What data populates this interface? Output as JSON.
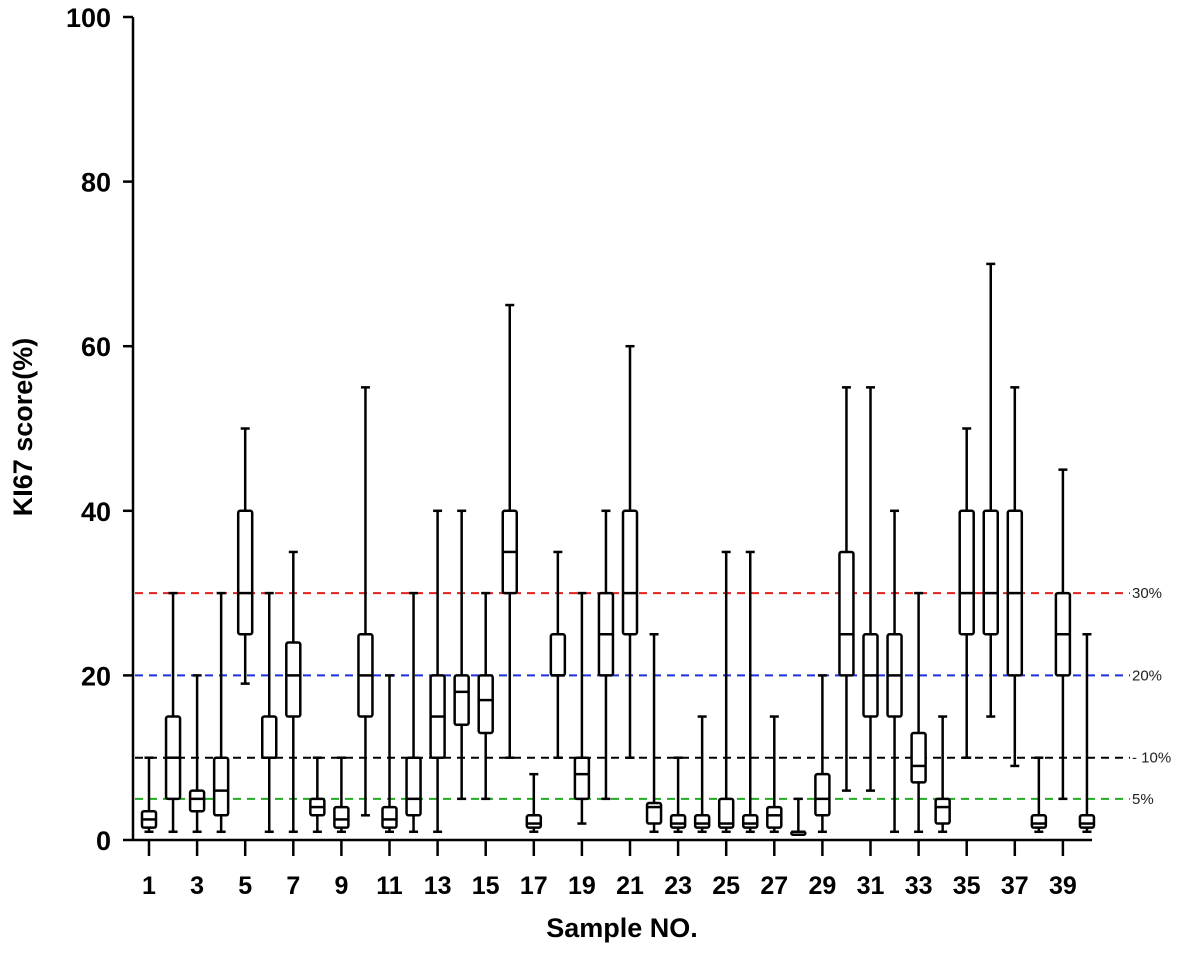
{
  "chart_data": {
    "type": "box",
    "title": "",
    "xlabel": "Sample NO.",
    "ylabel": "KI67 score(%)",
    "ylim": [
      0,
      100
    ],
    "yticks": [
      0,
      20,
      40,
      60,
      80,
      100
    ],
    "xtick_labels": [
      "1",
      "3",
      "5",
      "7",
      "9",
      "11",
      "13",
      "15",
      "17",
      "19",
      "21",
      "23",
      "25",
      "27",
      "29",
      "31",
      "33",
      "35",
      "37",
      "39"
    ],
    "reference_lines": [
      {
        "value": 30,
        "label": "30%",
        "color": "#e02020"
      },
      {
        "value": 20,
        "label": "20%",
        "color": "#1f2fd8"
      },
      {
        "value": 10,
        "label": "- 10%",
        "color": "#000000"
      },
      {
        "value": 5,
        "label": "5%",
        "color": "#22aa22"
      }
    ],
    "samples": [
      {
        "sample": 1,
        "min": 1,
        "q1": 1.5,
        "median": 2.5,
        "q3": 3.5,
        "max": 10
      },
      {
        "sample": 2,
        "min": 1,
        "q1": 5,
        "median": 10,
        "q3": 15,
        "max": 30
      },
      {
        "sample": 3,
        "min": 1,
        "q1": 3.5,
        "median": 5,
        "q3": 6,
        "max": 20
      },
      {
        "sample": 4,
        "min": 1,
        "q1": 3,
        "median": 6,
        "q3": 10,
        "max": 30
      },
      {
        "sample": 5,
        "min": 19,
        "q1": 25,
        "median": 30,
        "q3": 40,
        "max": 50
      },
      {
        "sample": 6,
        "min": 1,
        "q1": 10,
        "median": 10,
        "q3": 15,
        "max": 30
      },
      {
        "sample": 7,
        "min": 1,
        "q1": 15,
        "median": 20,
        "q3": 24,
        "max": 35
      },
      {
        "sample": 8,
        "min": 1,
        "q1": 3,
        "median": 4,
        "q3": 5,
        "max": 10
      },
      {
        "sample": 9,
        "min": 1,
        "q1": 1.5,
        "median": 2.5,
        "q3": 4,
        "max": 10
      },
      {
        "sample": 10,
        "min": 3,
        "q1": 15,
        "median": 20,
        "q3": 25,
        "max": 55
      },
      {
        "sample": 11,
        "min": 1,
        "q1": 1.5,
        "median": 2.5,
        "q3": 4,
        "max": 20
      },
      {
        "sample": 12,
        "min": 1,
        "q1": 3,
        "median": 5,
        "q3": 10,
        "max": 30
      },
      {
        "sample": 13,
        "min": 1,
        "q1": 10,
        "median": 15,
        "q3": 20,
        "max": 40
      },
      {
        "sample": 14,
        "min": 5,
        "q1": 14,
        "median": 18,
        "q3": 20,
        "max": 40
      },
      {
        "sample": 15,
        "min": 5,
        "q1": 13,
        "median": 17,
        "q3": 20,
        "max": 30
      },
      {
        "sample": 16,
        "min": 10,
        "q1": 30,
        "median": 35,
        "q3": 40,
        "max": 65
      },
      {
        "sample": 17,
        "min": 1,
        "q1": 1.5,
        "median": 2,
        "q3": 3,
        "max": 8
      },
      {
        "sample": 18,
        "min": 10,
        "q1": 20,
        "median": 20,
        "q3": 25,
        "max": 35
      },
      {
        "sample": 19,
        "min": 2,
        "q1": 5,
        "median": 8,
        "q3": 10,
        "max": 30
      },
      {
        "sample": 20,
        "min": 5,
        "q1": 20,
        "median": 25,
        "q3": 30,
        "max": 40
      },
      {
        "sample": 21,
        "min": 10,
        "q1": 25,
        "median": 30,
        "q3": 40,
        "max": 60
      },
      {
        "sample": 22,
        "min": 1,
        "q1": 2,
        "median": 4,
        "q3": 4.5,
        "max": 25
      },
      {
        "sample": 23,
        "min": 1,
        "q1": 1.5,
        "median": 2,
        "q3": 3,
        "max": 10
      },
      {
        "sample": 24,
        "min": 1,
        "q1": 1.5,
        "median": 2,
        "q3": 3,
        "max": 15
      },
      {
        "sample": 25,
        "min": 1,
        "q1": 1.5,
        "median": 2,
        "q3": 5,
        "max": 35
      },
      {
        "sample": 26,
        "min": 1,
        "q1": 1.5,
        "median": 2,
        "q3": 3,
        "max": 35
      },
      {
        "sample": 27,
        "min": 1,
        "q1": 1.5,
        "median": 3,
        "q3": 4,
        "max": 15
      },
      {
        "sample": 28,
        "min": 1,
        "q1": 1,
        "median": 1,
        "q3": 1,
        "max": 5
      },
      {
        "sample": 29,
        "min": 1,
        "q1": 3,
        "median": 5,
        "q3": 8,
        "max": 20
      },
      {
        "sample": 30,
        "min": 6,
        "q1": 20,
        "median": 25,
        "q3": 35,
        "max": 55
      },
      {
        "sample": 31,
        "min": 6,
        "q1": 15,
        "median": 20,
        "q3": 25,
        "max": 55
      },
      {
        "sample": 32,
        "min": 1,
        "q1": 15,
        "median": 20,
        "q3": 25,
        "max": 40
      },
      {
        "sample": 33,
        "min": 1,
        "q1": 7,
        "median": 9,
        "q3": 13,
        "max": 30
      },
      {
        "sample": 34,
        "min": 1,
        "q1": 2,
        "median": 4,
        "q3": 5,
        "max": 15
      },
      {
        "sample": 35,
        "min": 10,
        "q1": 25,
        "median": 30,
        "q3": 40,
        "max": 50
      },
      {
        "sample": 36,
        "min": 15,
        "q1": 25,
        "median": 30,
        "q3": 40,
        "max": 70
      },
      {
        "sample": 37,
        "min": 9,
        "q1": 20,
        "median": 30,
        "q3": 40,
        "max": 55
      },
      {
        "sample": 38,
        "min": 1,
        "q1": 1.5,
        "median": 2,
        "q3": 3,
        "max": 10
      },
      {
        "sample": 39,
        "min": 5,
        "q1": 20,
        "median": 25,
        "q3": 30,
        "max": 45
      },
      {
        "sample": 40,
        "min": 1,
        "q1": 1.5,
        "median": 2,
        "q3": 3,
        "max": 25
      }
    ]
  }
}
